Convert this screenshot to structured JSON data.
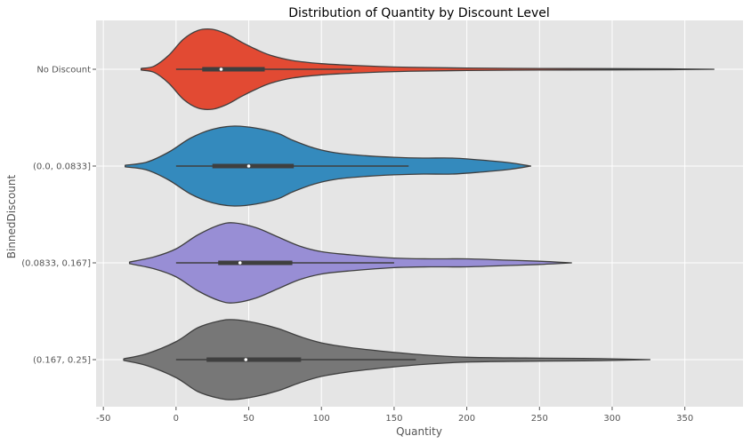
{
  "chart_data": {
    "type": "violin",
    "title": "Distribution of Quantity by Discount Level",
    "xlabel": "Quantity",
    "ylabel": "BinnedDiscount",
    "xlim": [
      -55,
      390
    ],
    "xticks": [
      -50,
      0,
      50,
      100,
      150,
      200,
      250,
      300,
      350
    ],
    "grid": true,
    "orientation": "horizontal",
    "categories": [
      "No Discount",
      "(0.0, 0.0833]",
      "(0.0833, 0.167]",
      "(0.167, 0.25]"
    ],
    "series": [
      {
        "category": "No Discount",
        "color": "#E24A33",
        "range": [
          -24,
          370
        ],
        "whisker": [
          0,
          121
        ],
        "box": [
          18,
          61
        ],
        "median": 31,
        "profile": [
          [
            -24,
            0.02
          ],
          [
            -15,
            0.08
          ],
          [
            -5,
            0.35
          ],
          [
            5,
            0.75
          ],
          [
            15,
            0.97
          ],
          [
            25,
            1.0
          ],
          [
            35,
            0.88
          ],
          [
            45,
            0.68
          ],
          [
            55,
            0.5
          ],
          [
            65,
            0.35
          ],
          [
            80,
            0.22
          ],
          [
            100,
            0.14
          ],
          [
            120,
            0.1
          ],
          [
            140,
            0.07
          ],
          [
            160,
            0.05
          ],
          [
            200,
            0.03
          ],
          [
            250,
            0.02
          ],
          [
            300,
            0.015
          ],
          [
            340,
            0.01
          ],
          [
            370,
            0.0
          ]
        ]
      },
      {
        "category": "(0.0, 0.0833]",
        "color": "#348ABD",
        "range": [
          -35,
          244
        ],
        "whisker": [
          0,
          160
        ],
        "box": [
          25,
          81
        ],
        "median": 50,
        "profile": [
          [
            -35,
            0.02
          ],
          [
            -20,
            0.1
          ],
          [
            -5,
            0.35
          ],
          [
            10,
            0.7
          ],
          [
            25,
            0.92
          ],
          [
            40,
            1.0
          ],
          [
            55,
            0.95
          ],
          [
            70,
            0.82
          ],
          [
            80,
            0.65
          ],
          [
            95,
            0.45
          ],
          [
            110,
            0.33
          ],
          [
            130,
            0.26
          ],
          [
            150,
            0.22
          ],
          [
            170,
            0.2
          ],
          [
            190,
            0.2
          ],
          [
            210,
            0.15
          ],
          [
            230,
            0.08
          ],
          [
            244,
            0.0
          ]
        ]
      },
      {
        "category": "(0.0833, 0.167]",
        "color": "#988ED5",
        "range": [
          -32,
          272
        ],
        "whisker": [
          0,
          150
        ],
        "box": [
          29,
          80
        ],
        "median": 44,
        "profile": [
          [
            -32,
            0.02
          ],
          [
            -15,
            0.15
          ],
          [
            0,
            0.35
          ],
          [
            15,
            0.7
          ],
          [
            30,
            0.95
          ],
          [
            40,
            1.0
          ],
          [
            55,
            0.88
          ],
          [
            70,
            0.65
          ],
          [
            85,
            0.42
          ],
          [
            100,
            0.28
          ],
          [
            120,
            0.2
          ],
          [
            150,
            0.12
          ],
          [
            175,
            0.1
          ],
          [
            200,
            0.1
          ],
          [
            225,
            0.07
          ],
          [
            250,
            0.04
          ],
          [
            272,
            0.0
          ]
        ]
      },
      {
        "category": "(0.167, 0.25]",
        "color": "#777777",
        "range": [
          -36,
          326
        ],
        "whisker": [
          0,
          165
        ],
        "box": [
          21,
          86
        ],
        "median": 48,
        "profile": [
          [
            -36,
            0.02
          ],
          [
            -20,
            0.15
          ],
          [
            0,
            0.45
          ],
          [
            15,
            0.8
          ],
          [
            30,
            0.97
          ],
          [
            40,
            1.0
          ],
          [
            55,
            0.92
          ],
          [
            70,
            0.78
          ],
          [
            85,
            0.58
          ],
          [
            100,
            0.42
          ],
          [
            120,
            0.3
          ],
          [
            145,
            0.2
          ],
          [
            170,
            0.12
          ],
          [
            200,
            0.06
          ],
          [
            240,
            0.04
          ],
          [
            280,
            0.03
          ],
          [
            300,
            0.02
          ],
          [
            326,
            0.0
          ]
        ]
      }
    ]
  }
}
